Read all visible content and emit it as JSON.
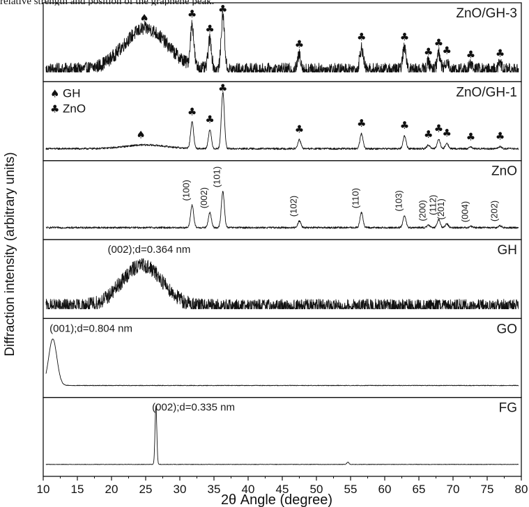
{
  "caption": "relative strength and position of the graphene peak.",
  "chart_data": {
    "type": "line",
    "xlabel": "2θ Angle (degree)",
    "ylabel": "Diffraction intensity (arbitrary units)",
    "xlim": [
      10,
      80
    ],
    "xticks": [
      10,
      15,
      20,
      25,
      30,
      35,
      40,
      45,
      50,
      55,
      60,
      65,
      70,
      75,
      80
    ],
    "legend": [
      {
        "symbol": "♠",
        "label": "GH"
      },
      {
        "symbol": "♣",
        "label": "ZnO"
      }
    ],
    "gh_symbol": "♠",
    "zno_symbol": "♣",
    "panels": [
      {
        "name": "ZnO/GH-3",
        "noise": 0.09,
        "humps": [
          {
            "x": 25,
            "height": 0.55,
            "width": 3.2
          }
        ],
        "peaks": [
          {
            "x": 31.8,
            "height": 0.55,
            "width": 0.25
          },
          {
            "x": 34.4,
            "height": 0.4,
            "width": 0.25
          },
          {
            "x": 36.3,
            "height": 0.72,
            "width": 0.25
          },
          {
            "x": 47.5,
            "height": 0.2,
            "width": 0.25
          },
          {
            "x": 56.6,
            "height": 0.3,
            "width": 0.25
          },
          {
            "x": 62.9,
            "height": 0.3,
            "width": 0.25
          },
          {
            "x": 66.4,
            "height": 0.1,
            "width": 0.25
          },
          {
            "x": 67.9,
            "height": 0.22,
            "width": 0.25
          },
          {
            "x": 69.1,
            "height": 0.12,
            "width": 0.25
          },
          {
            "x": 72.6,
            "height": 0.06,
            "width": 0.25
          },
          {
            "x": 76.9,
            "height": 0.08,
            "width": 0.25
          }
        ],
        "markers": [
          {
            "x": 24.8,
            "symbol": "♠"
          },
          {
            "x": 31.8,
            "symbol": "♣"
          },
          {
            "x": 34.4,
            "symbol": "♣"
          },
          {
            "x": 36.3,
            "symbol": "♣"
          },
          {
            "x": 47.5,
            "symbol": "♣"
          },
          {
            "x": 56.6,
            "symbol": "♣"
          },
          {
            "x": 62.9,
            "symbol": "♣"
          },
          {
            "x": 66.4,
            "symbol": "♣"
          },
          {
            "x": 67.9,
            "symbol": "♣"
          },
          {
            "x": 69.1,
            "symbol": "♣"
          },
          {
            "x": 72.6,
            "symbol": "♣"
          },
          {
            "x": 76.9,
            "symbol": "♣"
          }
        ]
      },
      {
        "name": "ZnO/GH-1",
        "noise": 0.012,
        "humps": [
          {
            "x": 25,
            "height": 0.05,
            "width": 3.0
          }
        ],
        "peaks": [
          {
            "x": 31.8,
            "height": 0.35,
            "width": 0.22
          },
          {
            "x": 34.4,
            "height": 0.25,
            "width": 0.22
          },
          {
            "x": 36.3,
            "height": 0.75,
            "width": 0.22
          },
          {
            "x": 47.5,
            "height": 0.12,
            "width": 0.22
          },
          {
            "x": 56.6,
            "height": 0.2,
            "width": 0.22
          },
          {
            "x": 62.9,
            "height": 0.17,
            "width": 0.22
          },
          {
            "x": 66.4,
            "height": 0.05,
            "width": 0.22
          },
          {
            "x": 67.9,
            "height": 0.13,
            "width": 0.22
          },
          {
            "x": 69.1,
            "height": 0.07,
            "width": 0.22
          },
          {
            "x": 72.6,
            "height": 0.02,
            "width": 0.22
          },
          {
            "x": 76.9,
            "height": 0.03,
            "width": 0.22
          }
        ],
        "markers": [
          {
            "x": 24.3,
            "symbol": "♠"
          },
          {
            "x": 31.8,
            "symbol": "♣"
          },
          {
            "x": 34.4,
            "symbol": "♣"
          },
          {
            "x": 36.3,
            "symbol": "♣"
          },
          {
            "x": 47.5,
            "symbol": "♣"
          },
          {
            "x": 56.6,
            "symbol": "♣"
          },
          {
            "x": 62.9,
            "symbol": "♣"
          },
          {
            "x": 66.4,
            "symbol": "♣"
          },
          {
            "x": 67.9,
            "symbol": "♣"
          },
          {
            "x": 69.1,
            "symbol": "♣"
          },
          {
            "x": 72.6,
            "symbol": "♣"
          },
          {
            "x": 76.9,
            "symbol": "♣"
          }
        ]
      },
      {
        "name": "ZnO",
        "noise": 0.012,
        "humps": [],
        "peaks": [
          {
            "x": 31.8,
            "height": 0.3,
            "width": 0.22
          },
          {
            "x": 34.4,
            "height": 0.2,
            "width": 0.22
          },
          {
            "x": 36.3,
            "height": 0.48,
            "width": 0.22
          },
          {
            "x": 47.5,
            "height": 0.09,
            "width": 0.22
          },
          {
            "x": 56.6,
            "height": 0.2,
            "width": 0.22
          },
          {
            "x": 62.9,
            "height": 0.16,
            "width": 0.22
          },
          {
            "x": 66.4,
            "height": 0.03,
            "width": 0.22
          },
          {
            "x": 67.9,
            "height": 0.11,
            "width": 0.22
          },
          {
            "x": 69.1,
            "height": 0.05,
            "width": 0.22
          },
          {
            "x": 72.6,
            "height": 0.015,
            "width": 0.22
          },
          {
            "x": 76.9,
            "height": 0.025,
            "width": 0.22
          }
        ],
        "hkl_labels": [
          {
            "x": 31.8,
            "label": "(100)"
          },
          {
            "x": 34.4,
            "label": "(002)"
          },
          {
            "x": 36.3,
            "label": "(101)"
          },
          {
            "x": 47.5,
            "label": "(102)"
          },
          {
            "x": 56.6,
            "label": "(110)"
          },
          {
            "x": 62.9,
            "label": "(103)"
          },
          {
            "x": 66.4,
            "label": "(200)"
          },
          {
            "x": 67.9,
            "label": "(112)"
          },
          {
            "x": 69.1,
            "label": "(201)"
          },
          {
            "x": 72.6,
            "label": "(004)"
          },
          {
            "x": 76.9,
            "label": "(202)"
          }
        ]
      },
      {
        "name": "GH",
        "noise": 0.1,
        "humps": [
          {
            "x": 24.5,
            "height": 0.55,
            "width": 3.0
          }
        ],
        "peaks": [],
        "annotation": {
          "x": 25.5,
          "text": "(002);d=0.364 nm"
        }
      },
      {
        "name": "GO",
        "noise": 0.004,
        "humps": [
          {
            "x": 11.4,
            "height": 0.62,
            "width": 0.6
          }
        ],
        "peaks": [],
        "annotation": {
          "x": 17,
          "text": "(001);d=0.804 nm"
        }
      },
      {
        "name": "FG",
        "noise": 0.003,
        "humps": [],
        "peaks": [
          {
            "x": 26.5,
            "height": 0.78,
            "width": 0.13
          },
          {
            "x": 54.6,
            "height": 0.03,
            "width": 0.15
          }
        ],
        "annotation": {
          "x": 32,
          "text": "(002);d=0.335 nm"
        }
      }
    ]
  }
}
